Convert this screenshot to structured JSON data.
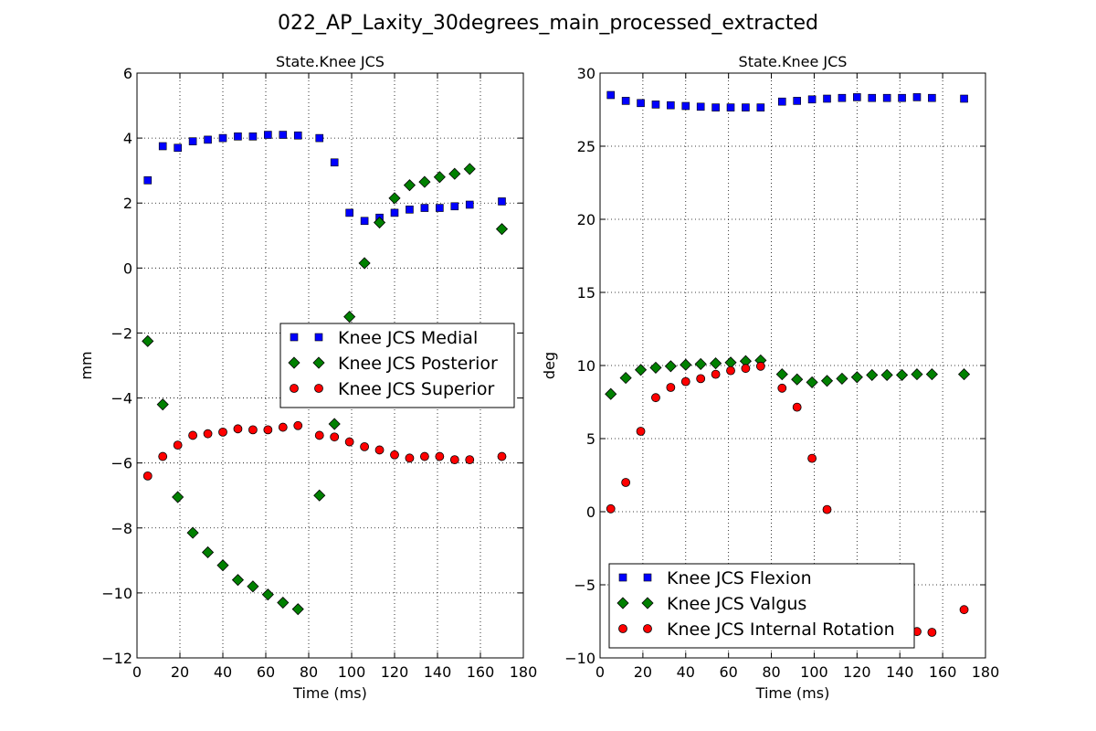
{
  "figure": {
    "suptitle": "022_AP_Laxity_30degrees_main_processed_extracted"
  },
  "chart_data": [
    {
      "type": "scatter",
      "title": "State.Knee JCS",
      "xlabel": "Time (ms)",
      "ylabel": "mm",
      "xlim": [
        0,
        180
      ],
      "ylim": [
        -12,
        6
      ],
      "xticks": [
        0,
        20,
        40,
        60,
        80,
        100,
        120,
        140,
        160,
        180
      ],
      "yticks": [
        -12,
        -10,
        -8,
        -6,
        -4,
        -2,
        0,
        2,
        4,
        6
      ],
      "yticklabels": [
        "−12",
        "−10",
        "−8",
        "−6",
        "−4",
        "−2",
        "0",
        "2",
        "4",
        "6"
      ],
      "grid": true,
      "legend_position": "center-right",
      "series": [
        {
          "name": "Knee JCS Medial",
          "marker": "square",
          "color": "#0000ff",
          "x": [
            5,
            12,
            19,
            26,
            33,
            40,
            47,
            54,
            61,
            68,
            75,
            85,
            92,
            99,
            106,
            113,
            120,
            127,
            134,
            141,
            148,
            155,
            170
          ],
          "y": [
            2.7,
            3.75,
            3.7,
            3.9,
            3.95,
            4.0,
            4.05,
            4.05,
            4.1,
            4.1,
            4.08,
            4.0,
            3.25,
            1.7,
            1.45,
            1.55,
            1.7,
            1.8,
            1.85,
            1.85,
            1.9,
            1.95,
            2.05
          ]
        },
        {
          "name": "Knee JCS Posterior",
          "marker": "diamond",
          "color": "#008000",
          "x": [
            5,
            12,
            19,
            26,
            33,
            40,
            47,
            54,
            61,
            68,
            75,
            85,
            92,
            99,
            106,
            113,
            120,
            127,
            134,
            141,
            148,
            155,
            170
          ],
          "y": [
            -2.25,
            -4.2,
            -7.05,
            -8.15,
            -8.75,
            -9.15,
            -9.6,
            -9.8,
            -10.05,
            -10.3,
            -10.5,
            -7.0,
            -4.8,
            -1.5,
            0.15,
            1.4,
            2.15,
            2.55,
            2.65,
            2.8,
            2.9,
            3.05,
            1.2
          ]
        },
        {
          "name": "Knee JCS Superior",
          "marker": "circle",
          "color": "#ff0000",
          "x": [
            5,
            12,
            19,
            26,
            33,
            40,
            47,
            54,
            61,
            68,
            75,
            85,
            92,
            99,
            106,
            113,
            120,
            127,
            134,
            141,
            148,
            155,
            170
          ],
          "y": [
            -6.4,
            -5.8,
            -5.45,
            -5.15,
            -5.1,
            -5.05,
            -4.95,
            -4.98,
            -4.98,
            -4.9,
            -4.85,
            -5.15,
            -5.2,
            -5.35,
            -5.5,
            -5.6,
            -5.75,
            -5.85,
            -5.8,
            -5.8,
            -5.9,
            -5.9,
            -5.8
          ]
        }
      ]
    },
    {
      "type": "scatter",
      "title": "State.Knee JCS",
      "xlabel": "Time (ms)",
      "ylabel": "deg",
      "xlim": [
        0,
        180
      ],
      "ylim": [
        -10,
        30
      ],
      "xticks": [
        0,
        20,
        40,
        60,
        80,
        100,
        120,
        140,
        160,
        180
      ],
      "yticks": [
        -10,
        -5,
        0,
        5,
        10,
        15,
        20,
        25,
        30
      ],
      "yticklabels": [
        "−10",
        "−5",
        "0",
        "5",
        "10",
        "15",
        "20",
        "25",
        "30"
      ],
      "grid": true,
      "legend_position": "lower-left",
      "series": [
        {
          "name": "Knee JCS Flexion",
          "marker": "square",
          "color": "#0000ff",
          "x": [
            5,
            12,
            19,
            26,
            33,
            40,
            47,
            54,
            61,
            68,
            75,
            85,
            92,
            99,
            106,
            113,
            120,
            127,
            134,
            141,
            148,
            155,
            170
          ],
          "y": [
            28.5,
            28.1,
            27.95,
            27.85,
            27.8,
            27.75,
            27.7,
            27.65,
            27.65,
            27.65,
            27.65,
            28.05,
            28.1,
            28.2,
            28.25,
            28.3,
            28.35,
            28.3,
            28.3,
            28.3,
            28.35,
            28.3,
            28.25
          ]
        },
        {
          "name": "Knee JCS Valgus",
          "marker": "diamond",
          "color": "#008000",
          "x": [
            5,
            12,
            19,
            26,
            33,
            40,
            47,
            54,
            61,
            68,
            75,
            85,
            92,
            99,
            106,
            113,
            120,
            127,
            134,
            141,
            148,
            155,
            170
          ],
          "y": [
            8.05,
            9.15,
            9.7,
            9.85,
            9.95,
            10.05,
            10.1,
            10.15,
            10.2,
            10.3,
            10.35,
            9.4,
            9.05,
            8.85,
            8.95,
            9.1,
            9.2,
            9.35,
            9.35,
            9.35,
            9.4,
            9.4,
            9.4
          ]
        },
        {
          "name": "Knee JCS Internal Rotation",
          "marker": "circle",
          "color": "#ff0000",
          "x": [
            5,
            12,
            19,
            26,
            33,
            40,
            47,
            54,
            61,
            68,
            75,
            85,
            92,
            99,
            106,
            148,
            155,
            170
          ],
          "y": [
            0.2,
            2.0,
            5.5,
            7.8,
            8.5,
            8.9,
            9.1,
            9.4,
            9.65,
            9.8,
            9.95,
            8.45,
            7.15,
            3.65,
            0.15,
            -8.2,
            -8.25,
            -6.7
          ]
        }
      ]
    }
  ]
}
